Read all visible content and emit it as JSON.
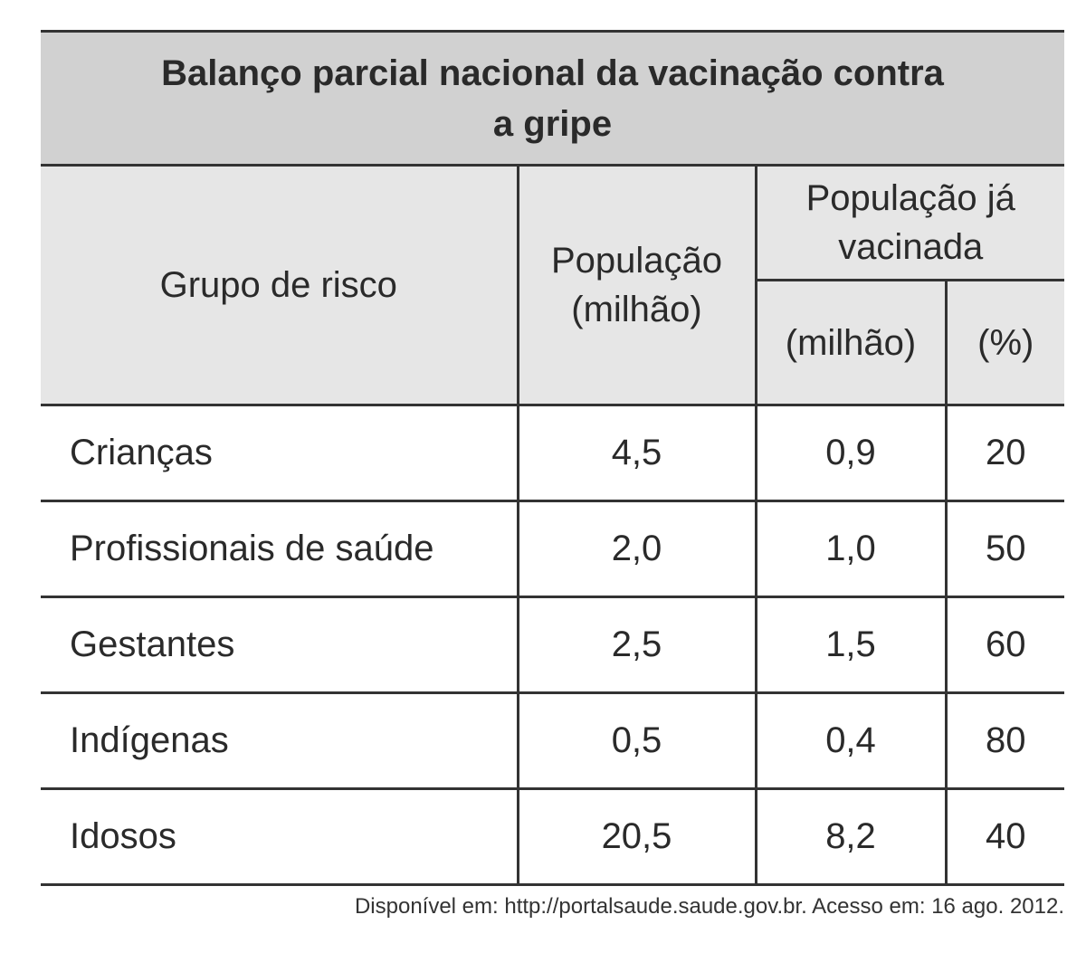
{
  "title": "Balanço parcial nacional da vacinação contra a gripe",
  "header": {
    "group": "Grupo de risco",
    "population": "População (milhão)",
    "vaccinated": "População já vacinada",
    "vaccinated_million": "(milhão)",
    "vaccinated_percent": "(%)"
  },
  "table": {
    "rows": [
      [
        "Crianças",
        "4,5",
        "0,9",
        "20"
      ],
      [
        "Profissionais de saúde",
        "2,0",
        "1,0",
        "50"
      ],
      [
        "Gestantes",
        "2,5",
        "1,5",
        "60"
      ],
      [
        "Indígenas",
        "0,5",
        "0,4",
        "80"
      ],
      [
        "Idosos",
        "20,5",
        "8,2",
        "40"
      ]
    ]
  },
  "source": "Disponível em: http://portalsaude.saude.gov.br. Acesso em: 16 ago. 2012."
}
